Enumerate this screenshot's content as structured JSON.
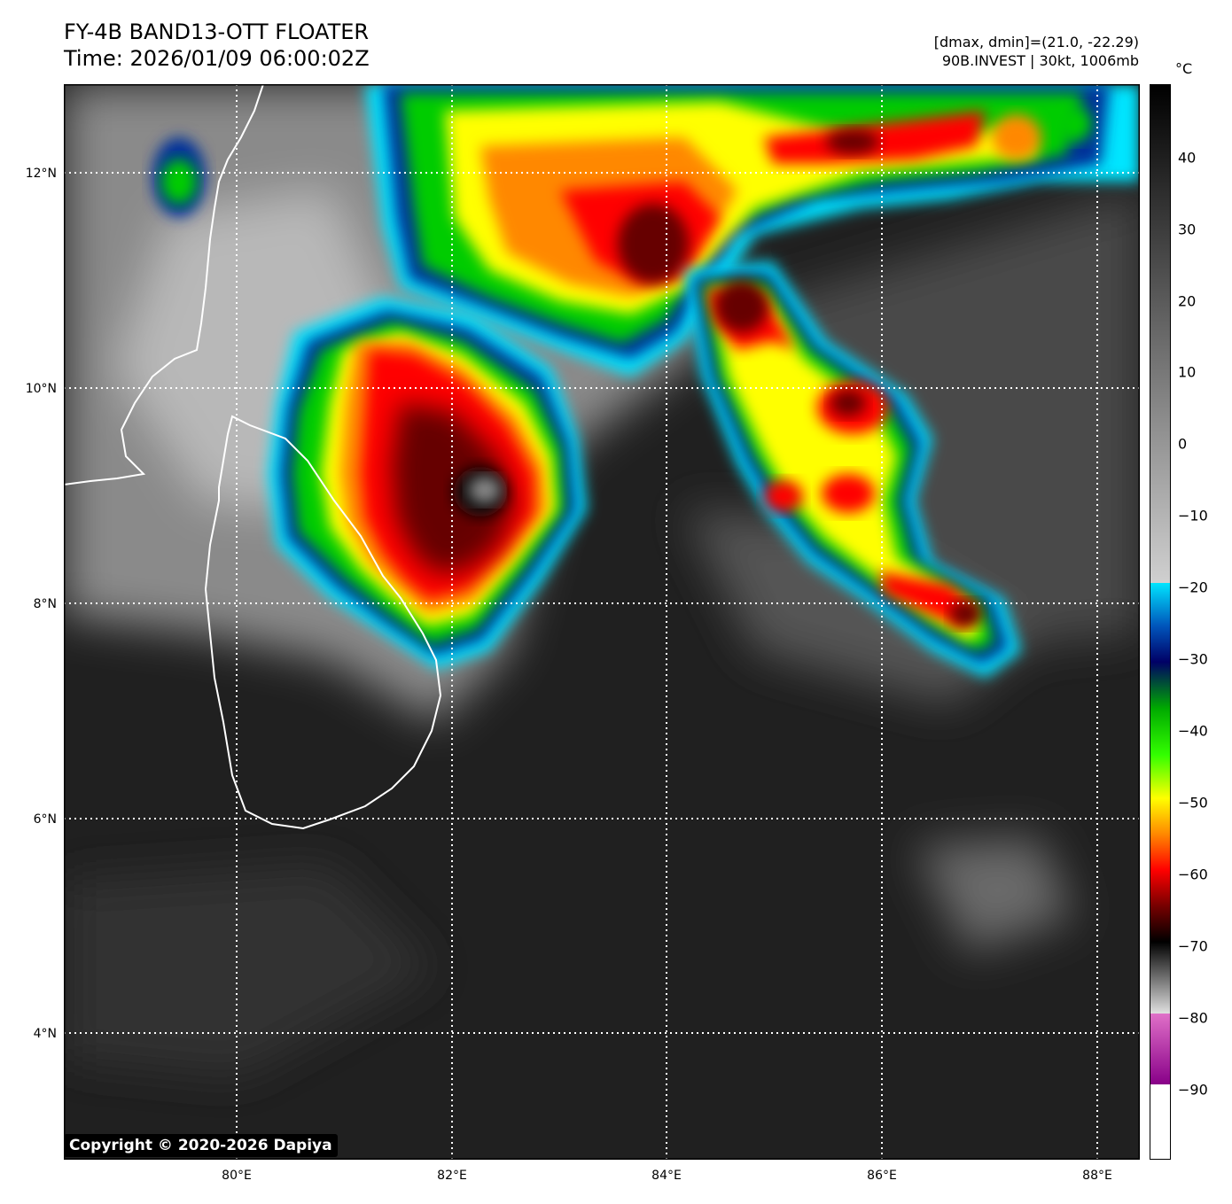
{
  "header": {
    "title_line1": "FY-4B BAND13-OTT FLOATER",
    "title_line2": "Time: 2026/01/09 06:00:02Z",
    "meta_line1": "[dmax, dmin]=(21.0, -22.29)",
    "meta_line2": "90B.INVEST | 30kt, 1006mb"
  },
  "map": {
    "lat_labels": [
      "12°N",
      "10°N",
      "8°N",
      "6°N",
      "4°N"
    ],
    "lon_labels": [
      "80°E",
      "82°E",
      "84°E",
      "86°E",
      "88°E"
    ],
    "gridline_style": "dotted white",
    "coastline": "Sri Lanka (white outline)"
  },
  "colorbar": {
    "unit": "°C",
    "ticks": [
      "40",
      "30",
      "20",
      "10",
      "0",
      "−10",
      "−20",
      "−30",
      "−40",
      "−50",
      "−60",
      "−70",
      "−80",
      "−90"
    ],
    "colors": {
      "black": "#000000",
      "gray": "#808080",
      "cyan": "#00e5ff",
      "blue": "#0033aa",
      "navy": "#000066",
      "green": "#00cc00",
      "lime": "#00ff00",
      "yellow": "#ffff00",
      "orange": "#ff8800",
      "red": "#ff0000",
      "darkred": "#660000",
      "magenta": "#e060c0",
      "purple": "#880088",
      "white": "#ffffff"
    }
  },
  "footer": {
    "copyright": "Copyright © 2020-2026 Dapiya"
  }
}
